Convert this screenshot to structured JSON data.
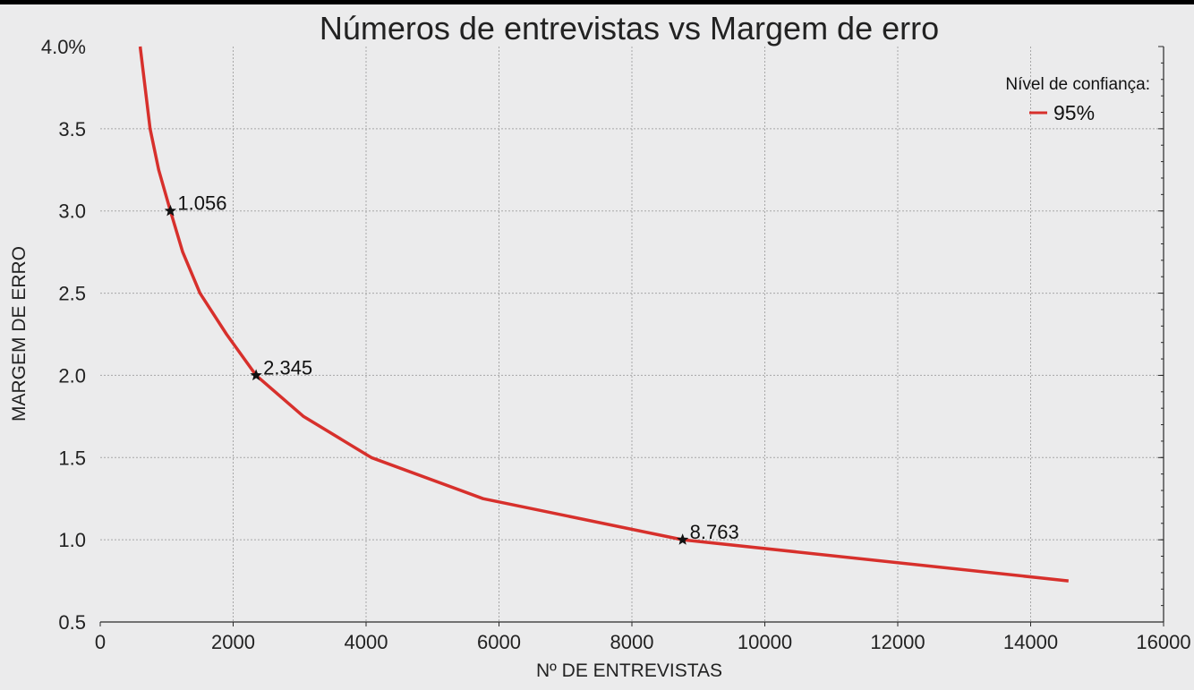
{
  "chart_data": {
    "type": "line",
    "title": "Números de entrevistas vs Margem de erro",
    "xlabel": "Nº DE ENTREVISTAS",
    "ylabel": "MARGEM DE ERRO",
    "xlim": [
      0,
      16000
    ],
    "ylim": [
      0.5,
      4.0
    ],
    "x_ticks": [
      0,
      2000,
      4000,
      6000,
      8000,
      10000,
      12000,
      14000,
      16000
    ],
    "y_ticks": [
      0.5,
      1.0,
      1.5,
      2.0,
      2.5,
      3.0,
      3.5,
      4.0
    ],
    "y_tick_labels": [
      "0.5",
      "1.0",
      "1.5",
      "2.0",
      "2.5",
      "3.0",
      "3.5",
      "4.0%"
    ],
    "grid": true,
    "legend": {
      "title": "Nível de confiança:",
      "position": "top-right"
    },
    "series": [
      {
        "name": "95%",
        "color": "#d7302c",
        "x": [
          600,
          750,
          880,
          1056,
          1240,
          1500,
          1900,
          2345,
          3060,
          4080,
          5760,
          8763,
          14570
        ],
        "y": [
          4.0,
          3.5,
          3.25,
          3.0,
          2.75,
          2.5,
          2.25,
          2.0,
          1.75,
          1.5,
          1.25,
          1.0,
          0.75
        ]
      }
    ],
    "annotations": [
      {
        "x": 1056,
        "y": 3.0,
        "label": "1.056"
      },
      {
        "x": 2345,
        "y": 2.0,
        "label": "2.345"
      },
      {
        "x": 8763,
        "y": 1.0,
        "label": "8.763"
      }
    ]
  }
}
